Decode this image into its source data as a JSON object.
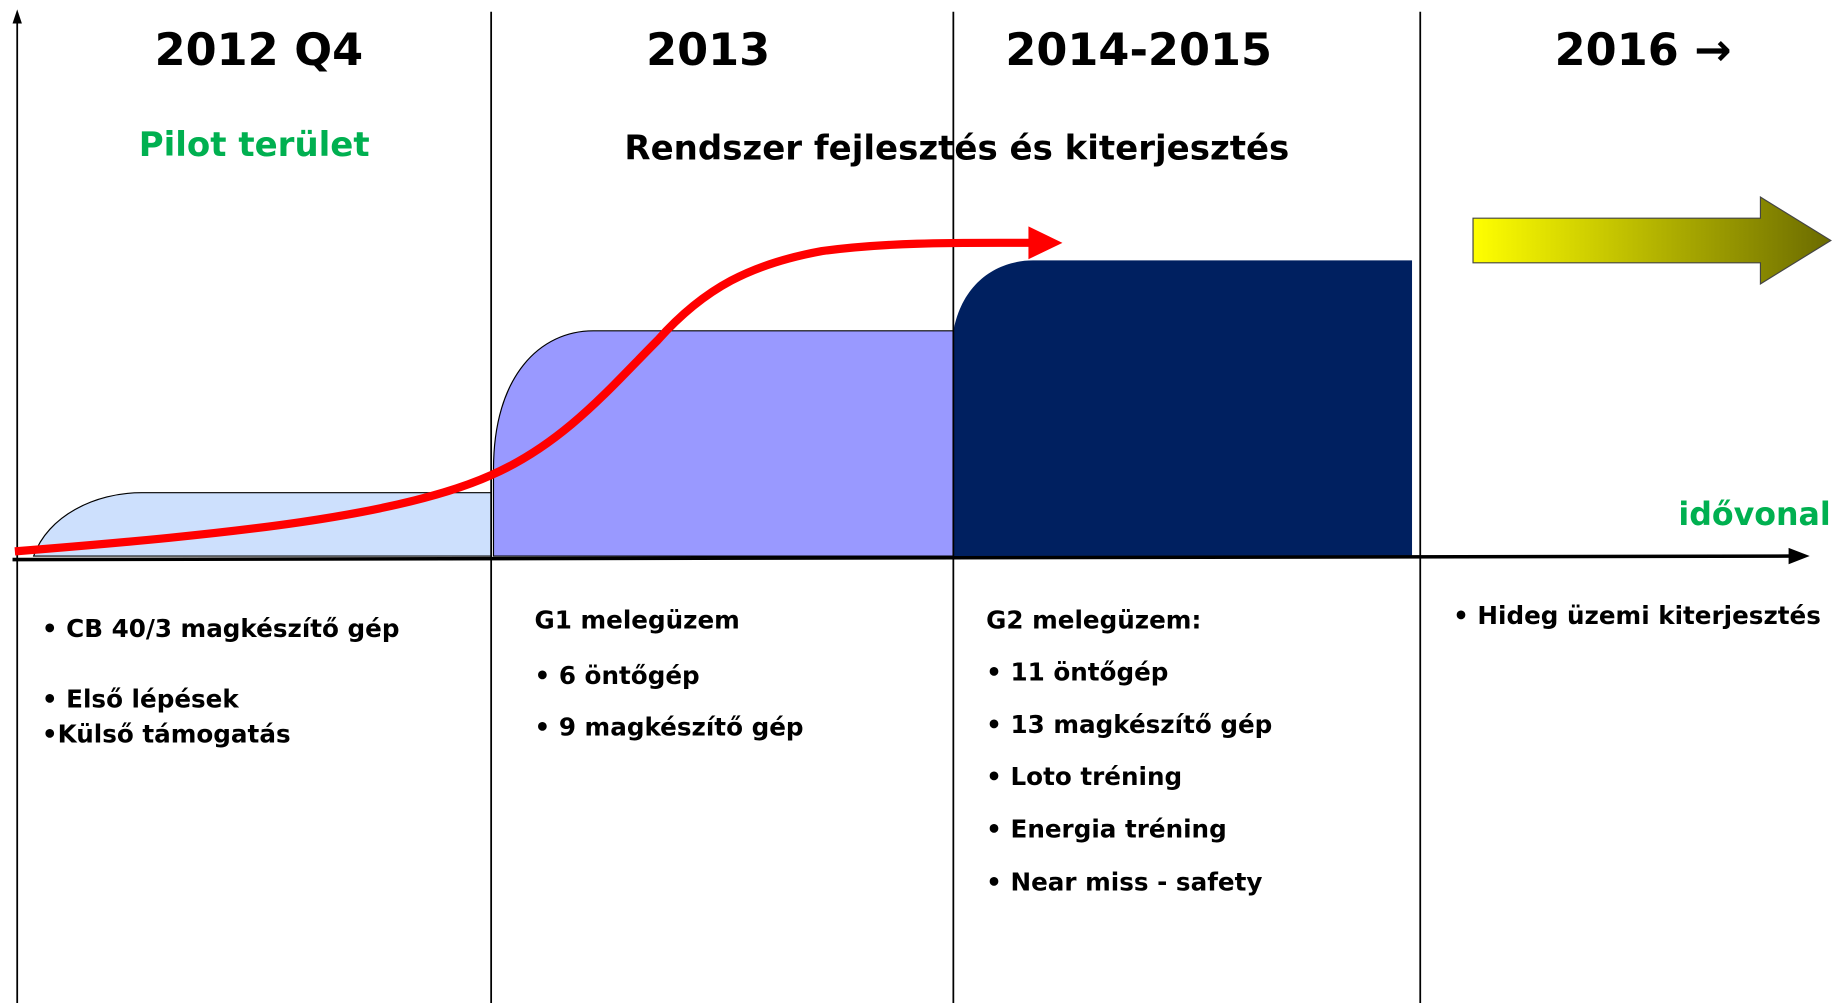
{
  "periods": [
    {
      "title": "2012 Q4",
      "items": [
        "• CB 40/3 magkészítő gép",
        "• Első lépések",
        "•Külső támogatás"
      ]
    },
    {
      "title": "2013",
      "items": [
        "G1 melegüzem",
        "• 6 öntőgép",
        "• 9 magkészítő gép"
      ]
    },
    {
      "title": "2014-2015",
      "items": [
        "G2 melegüzem:",
        "• 11 öntőgép",
        "• 13 magkészítő gép",
        "• Loto tréning",
        "• Energia tréning",
        "• Near miss - safety"
      ]
    },
    {
      "title": "2016 →",
      "items": [
        "• Hideg üzemi kiterjesztés"
      ]
    }
  ],
  "phases": [
    "Pilot terület",
    "Rendszer fejlesztés és kiterjesztés"
  ],
  "axis_label": "idővonal"
}
